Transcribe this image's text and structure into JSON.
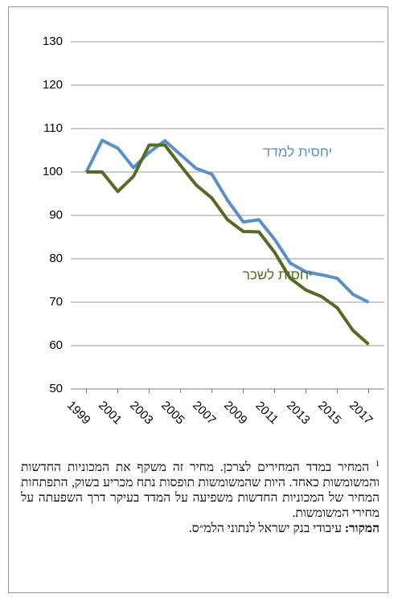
{
  "chart_data": {
    "type": "line",
    "x": [
      1999,
      2000,
      2001,
      2002,
      2003,
      2004,
      2005,
      2006,
      2007,
      2008,
      2009,
      2010,
      2011,
      2012,
      2013,
      2014,
      2015,
      2016,
      2017
    ],
    "series": [
      {
        "name": "יחסית למדד",
        "color": "#5b8fc9",
        "values": [
          100,
          107.3,
          105.5,
          101,
          104.5,
          107.2,
          104,
          100.8,
          99.5,
          93.5,
          88.5,
          89,
          84.5,
          79,
          77,
          76.3,
          75.5,
          71.8,
          70
        ]
      },
      {
        "name": "יחסית לשכר",
        "color": "#556b24",
        "values": [
          100,
          100,
          95.5,
          99,
          106.2,
          106.2,
          101.5,
          97,
          94,
          89,
          86.3,
          86.2,
          81.5,
          75.5,
          72.8,
          71.3,
          68.7,
          63.5,
          60.3
        ]
      }
    ],
    "xlim": [
      1998,
      2018
    ],
    "xticks": [
      1999,
      2001,
      2003,
      2005,
      2007,
      2009,
      2011,
      2013,
      2015,
      2017
    ],
    "ylim": [
      50,
      130
    ],
    "yticks": [
      50,
      60,
      70,
      80,
      90,
      100,
      110,
      120,
      130
    ],
    "grid": true
  },
  "footnote": {
    "marker": "1",
    "text": "המחיר במדד המחירים לצרכן. מחיר זה משקף את המכוניות החדשות והמשומשות כאחד. היות שהמשומשות תופסות נתח מכריע בשוק, התפתחות המחיר של המכוניות החדשות משפיעה על המדד בעיקר דרך השפעתה על מחירי המשומשות."
  },
  "source": {
    "label": "המקור:",
    "text": "עיבודי בנק ישראל לנתוני הלמ״ס."
  }
}
